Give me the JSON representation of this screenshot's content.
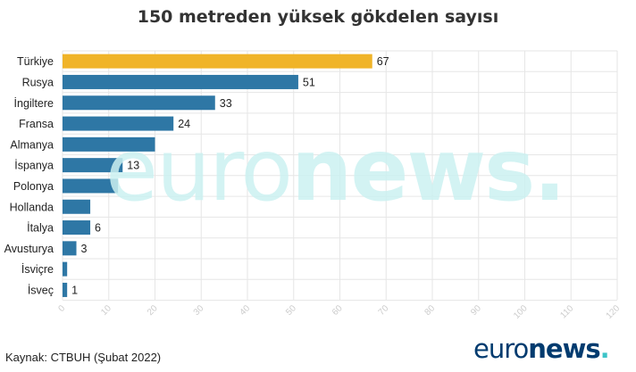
{
  "chart_data": {
    "type": "bar",
    "orientation": "horizontal",
    "title": "150 metreden yüksek gökdelen sayısı",
    "categories": [
      "Türkiye",
      "Rusya",
      "İngiltere",
      "Fransa",
      "Almanya",
      "İspanya",
      "Polonya",
      "Hollanda",
      "İtalya",
      "Avusturya",
      "İsviçre",
      "İsveç"
    ],
    "values": [
      67,
      51,
      33,
      24,
      20,
      13,
      12,
      6,
      6,
      3,
      1,
      1
    ],
    "data_labels": [
      "67",
      "51",
      "33",
      "24",
      "",
      "13",
      "",
      "",
      "6",
      "3",
      "",
      "1"
    ],
    "highlight_index": 0,
    "xlim": [
      0,
      120
    ],
    "xticks": [
      "0",
      "10",
      "20",
      "30",
      "40",
      "50",
      "60",
      "70",
      "80",
      "90",
      "100",
      "110",
      "120"
    ],
    "grid": true,
    "colors": {
      "bar": "#2e77a5",
      "highlight": "#f0b429",
      "grid": "#e6e6e6",
      "tick": "#cccccc"
    }
  },
  "source": "Kaynak: CTBUH (Şubat 2022)",
  "watermark": {
    "part1": "euro",
    "part2": "news",
    "part3": "."
  },
  "logo": {
    "part1": "euro",
    "part2": "news",
    "part3": "."
  }
}
